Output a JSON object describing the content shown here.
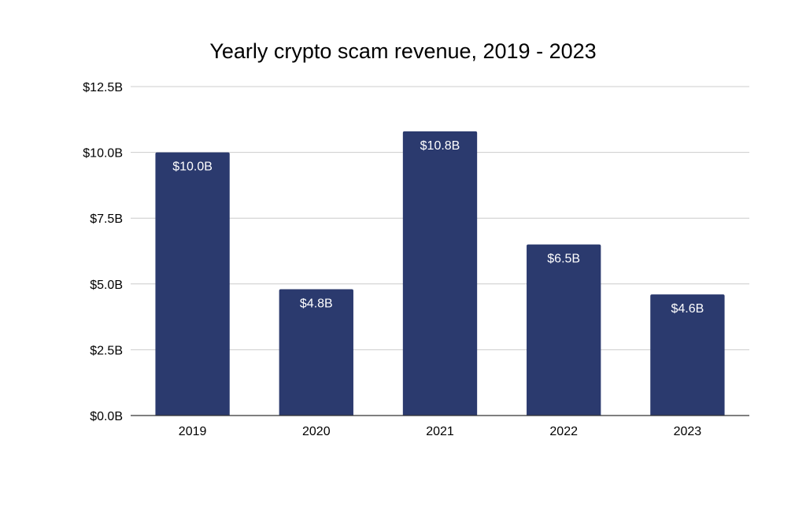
{
  "chart_data": {
    "type": "bar",
    "title": "Yearly crypto scam revenue, 2019 - 2023",
    "xlabel": "",
    "ylabel": "",
    "categories": [
      "2019",
      "2020",
      "2021",
      "2022",
      "2023"
    ],
    "values": [
      10.0,
      4.8,
      10.8,
      6.5,
      4.6
    ],
    "value_labels": [
      "$10.0B",
      "$4.8B",
      "$10.8B",
      "$6.5B",
      "$4.6B"
    ],
    "unit": "billion USD",
    "ylim": [
      0,
      12.5
    ],
    "yticks": [
      0,
      2.5,
      5.0,
      7.5,
      10.0,
      12.5
    ],
    "ytick_labels": [
      "$0.0B",
      "$2.5B",
      "$5.0B",
      "$7.5B",
      "$10.0B",
      "$12.5B"
    ],
    "grid": true,
    "legend": "none",
    "colors": {
      "bar": "#2b3a6e",
      "grid": "#cccccc",
      "axis": "#333333",
      "bar_label": "#ffffff"
    }
  }
}
